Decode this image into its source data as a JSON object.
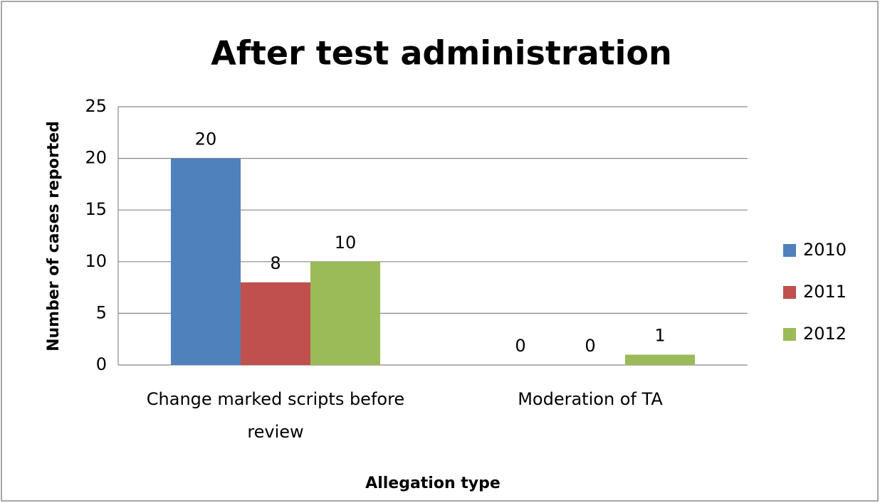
{
  "chart_data": {
    "type": "bar",
    "title": "After test administration",
    "x_label": "Allegation type",
    "y_label": "Number of cases reported",
    "categories": [
      "Change marked scripts before review",
      "Moderation of TA"
    ],
    "series": [
      {
        "name": "2010",
        "color": "#4f81bd",
        "values": [
          20,
          0
        ]
      },
      {
        "name": "2011",
        "color": "#c0504d",
        "values": [
          8,
          0
        ]
      },
      {
        "name": "2012",
        "color": "#9bbb59",
        "values": [
          10,
          1
        ]
      }
    ],
    "ylim": [
      0,
      25
    ],
    "yticks": [
      0,
      5,
      10,
      15,
      20,
      25
    ],
    "grid": true,
    "legend": "right"
  }
}
